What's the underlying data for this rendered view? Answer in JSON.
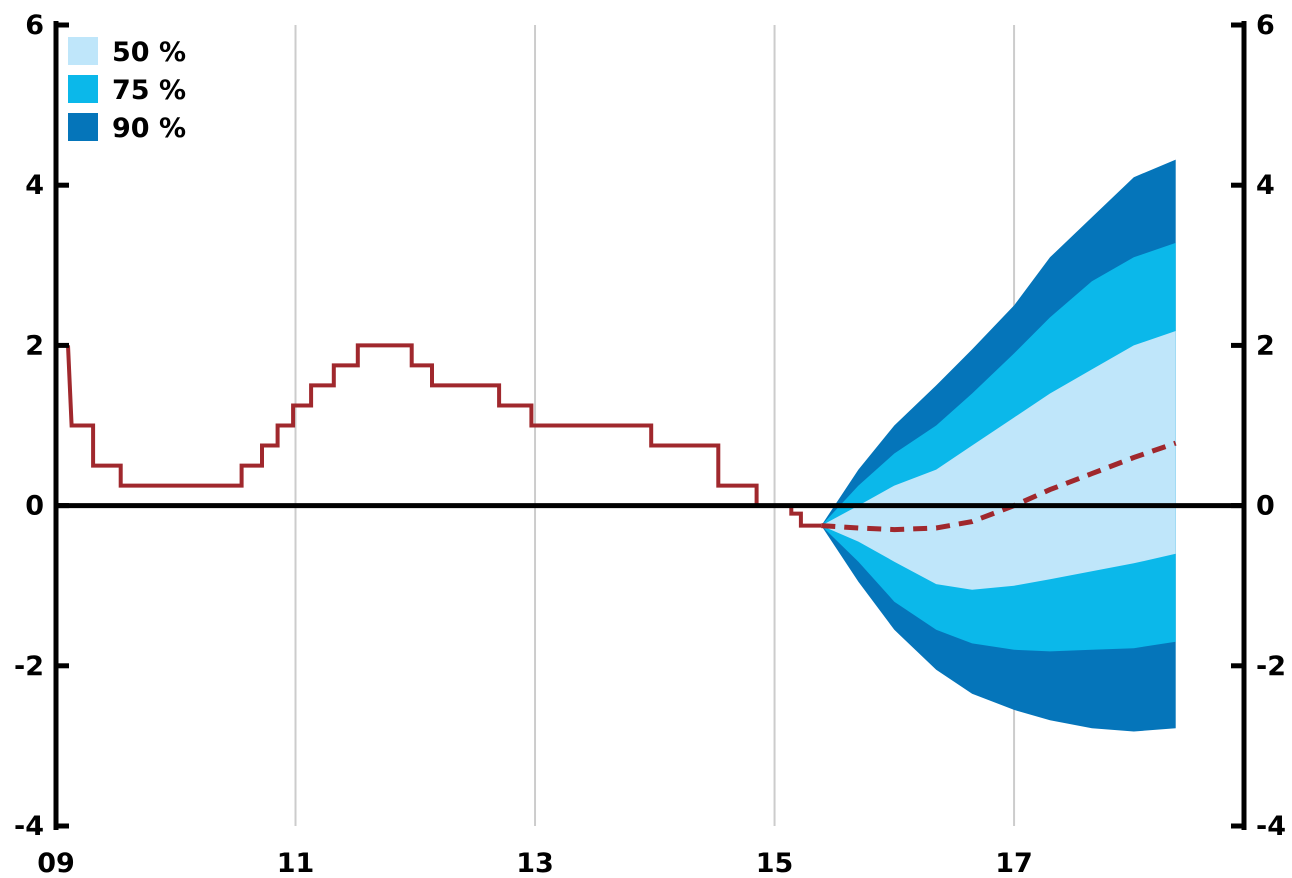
{
  "chart_data": {
    "type": "area",
    "title": "",
    "xlabel": "",
    "ylabel": "",
    "x_range": [
      2009.0,
      2018.92
    ],
    "y_range": [
      -4,
      6
    ],
    "x_ticks": [
      {
        "value": 2009,
        "label": "09"
      },
      {
        "value": 2011,
        "label": "11"
      },
      {
        "value": 2013,
        "label": "13"
      },
      {
        "value": 2015,
        "label": "15"
      },
      {
        "value": 2017,
        "label": "17"
      }
    ],
    "y_ticks": [
      {
        "value": 6,
        "label": "6"
      },
      {
        "value": 4,
        "label": "4"
      },
      {
        "value": 2,
        "label": "2"
      },
      {
        "value": 0,
        "label": "0"
      },
      {
        "value": -2,
        "label": "-2"
      },
      {
        "value": -4,
        "label": "-4"
      }
    ],
    "grid": "vertical",
    "legend_position": "top-left",
    "colors": {
      "band_50": "#bfe6fa",
      "band_75": "#0bb8ea",
      "band_90": "#0575ba",
      "line": "#a0282d",
      "axis": "#000000",
      "grid": "#cccccc"
    },
    "legend": [
      {
        "label": "50 %",
        "color": "#bfe6fa"
      },
      {
        "label": "75 %",
        "color": "#0bb8ea"
      },
      {
        "label": "90 %",
        "color": "#0575ba"
      }
    ],
    "historical_step": [
      [
        2009.1,
        2.0
      ],
      [
        2009.13,
        1.0
      ],
      [
        2009.31,
        1.0
      ],
      [
        2009.31,
        0.5
      ],
      [
        2009.54,
        0.5
      ],
      [
        2009.54,
        0.25
      ],
      [
        2010.55,
        0.25
      ],
      [
        2010.55,
        0.5
      ],
      [
        2010.72,
        0.5
      ],
      [
        2010.72,
        0.75
      ],
      [
        2010.85,
        0.75
      ],
      [
        2010.85,
        1.0
      ],
      [
        2010.98,
        1.0
      ],
      [
        2010.98,
        1.25
      ],
      [
        2011.13,
        1.25
      ],
      [
        2011.13,
        1.5
      ],
      [
        2011.32,
        1.5
      ],
      [
        2011.32,
        1.75
      ],
      [
        2011.52,
        1.75
      ],
      [
        2011.52,
        2.0
      ],
      [
        2011.97,
        2.0
      ],
      [
        2011.97,
        1.75
      ],
      [
        2012.14,
        1.75
      ],
      [
        2012.14,
        1.5
      ],
      [
        2012.7,
        1.5
      ],
      [
        2012.7,
        1.25
      ],
      [
        2012.97,
        1.25
      ],
      [
        2012.97,
        1.0
      ],
      [
        2013.97,
        1.0
      ],
      [
        2013.97,
        0.75
      ],
      [
        2014.53,
        0.75
      ],
      [
        2014.53,
        0.25
      ],
      [
        2014.85,
        0.25
      ],
      [
        2014.85,
        0.0
      ],
      [
        2015.14,
        0.0
      ],
      [
        2015.14,
        -0.1
      ],
      [
        2015.22,
        -0.1
      ],
      [
        2015.22,
        -0.25
      ],
      [
        2015.39,
        -0.25
      ]
    ],
    "projection": {
      "x": [
        2015.39,
        2015.7,
        2016.0,
        2016.35,
        2016.65,
        2017.0,
        2017.3,
        2017.65,
        2018.0,
        2018.35
      ],
      "median": [
        -0.25,
        -0.28,
        -0.3,
        -0.28,
        -0.2,
        0.0,
        0.2,
        0.4,
        0.6,
        0.78
      ],
      "p50_low": [
        -0.25,
        -0.45,
        -0.7,
        -0.98,
        -1.05,
        -1.0,
        -0.92,
        -0.82,
        -0.72,
        -0.6
      ],
      "p50_high": [
        -0.25,
        0.0,
        0.25,
        0.45,
        0.75,
        1.1,
        1.4,
        1.7,
        2.0,
        2.18
      ],
      "p75_low": [
        -0.25,
        -0.7,
        -1.2,
        -1.55,
        -1.72,
        -1.8,
        -1.82,
        -1.8,
        -1.78,
        -1.7
      ],
      "p75_high": [
        -0.25,
        0.25,
        0.65,
        1.0,
        1.4,
        1.9,
        2.35,
        2.8,
        3.1,
        3.28
      ],
      "p90_low": [
        -0.25,
        -0.95,
        -1.55,
        -2.05,
        -2.35,
        -2.55,
        -2.68,
        -2.78,
        -2.82,
        -2.78
      ],
      "p90_high": [
        -0.25,
        0.45,
        1.0,
        1.5,
        1.95,
        2.5,
        3.1,
        3.6,
        4.1,
        4.32
      ]
    }
  }
}
